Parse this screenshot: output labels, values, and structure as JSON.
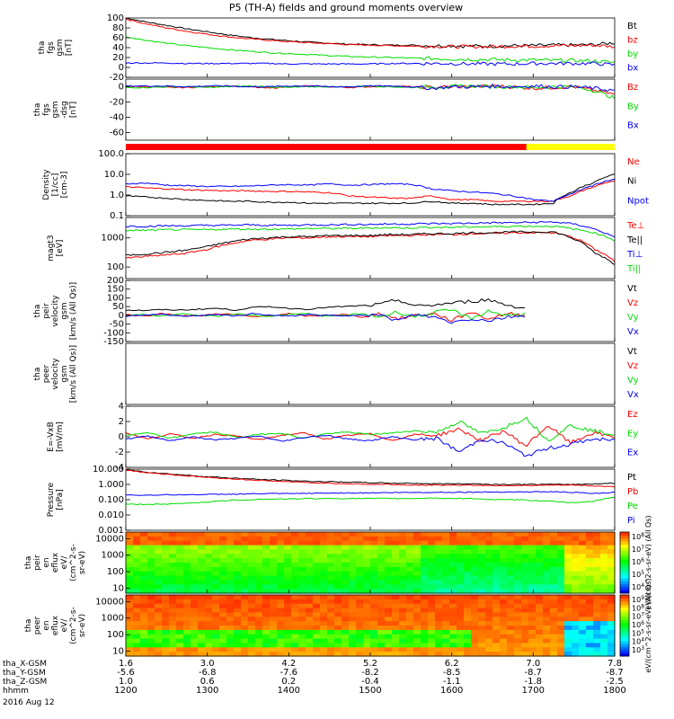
{
  "title": "P5 (TH-A) fields and ground moments overview",
  "colors": {
    "black": "#000000",
    "red": "#ff0000",
    "green": "#00dd00",
    "blue": "#0000ff",
    "yellow": "#ffff00"
  },
  "chart_data": [
    {
      "type": "line",
      "panel": "fgs-gsm",
      "ylabel": [
        "tha",
        "fgs",
        "gsm",
        "[nT]"
      ],
      "ylim": [
        -20,
        100
      ],
      "ytick_labels": [
        "100",
        "80",
        "60",
        "40",
        "20",
        "0",
        "-20"
      ],
      "series": [
        {
          "name": "Bt",
          "color": "black",
          "values": [
            100,
            92,
            85,
            78,
            72,
            66,
            61,
            57,
            54,
            51,
            49,
            47,
            46,
            45,
            45,
            44,
            44,
            43,
            43,
            44,
            44,
            45,
            45,
            46,
            50
          ]
        },
        {
          "name": "bz",
          "color": "red",
          "values": [
            98,
            88,
            80,
            73,
            67,
            62,
            58,
            55,
            52,
            50,
            48,
            46,
            45,
            44,
            43,
            43,
            42,
            42,
            42,
            43,
            43,
            44,
            44,
            45,
            42
          ]
        },
        {
          "name": "by",
          "color": "green",
          "values": [
            62,
            55,
            49,
            44,
            40,
            36,
            33,
            30,
            28,
            26,
            24,
            22,
            21,
            20,
            19,
            18,
            17,
            16,
            16,
            15,
            15,
            14,
            14,
            13,
            10
          ]
        },
        {
          "name": "bx",
          "color": "blue",
          "values": [
            9,
            9,
            9,
            8,
            8,
            8,
            8,
            8,
            7,
            7,
            7,
            7,
            7,
            8,
            8,
            8,
            8,
            7,
            7,
            7,
            8,
            8,
            8,
            8,
            5
          ]
        }
      ]
    },
    {
      "type": "line",
      "panel": "fgs-gsm-dsg",
      "ylabel": [
        "tha",
        "fgs",
        "gsm",
        "-dsg",
        "[nT]"
      ],
      "ylim": [
        -70,
        10
      ],
      "ytick_labels": [
        "0",
        "-20",
        "-40",
        "-60"
      ],
      "series": [
        {
          "name": "Bz",
          "color": "red",
          "values": [
            0,
            0,
            -1,
            -1,
            0,
            1,
            0,
            -2,
            0,
            1,
            0,
            -1,
            0,
            1,
            0,
            -1,
            0,
            0,
            1,
            0,
            -2,
            -1,
            0,
            -5,
            -10
          ]
        },
        {
          "name": "By",
          "color": "green",
          "values": [
            -1,
            -1,
            0,
            0,
            -1,
            0,
            1,
            0,
            -1,
            0,
            0,
            0,
            1,
            0,
            -1,
            0,
            0,
            1,
            0,
            0,
            -1,
            0,
            0,
            -5,
            -15
          ]
        },
        {
          "name": "Bx",
          "color": "blue",
          "values": [
            1,
            1,
            1,
            0,
            1,
            1,
            0,
            0,
            1,
            1,
            0,
            0,
            1,
            1,
            0,
            -2,
            0,
            0,
            1,
            0,
            1,
            0,
            0,
            -2,
            -5
          ]
        }
      ]
    },
    {
      "type": "line",
      "panel": "density",
      "ylabel": [
        "Density",
        "[1/cc]",
        "[cm-3]"
      ],
      "yscale": "log",
      "ylim": [
        0.1,
        100
      ],
      "ytick_labels": [
        "100.0",
        "10.0",
        "1.0",
        "0.1"
      ],
      "series": [
        {
          "name": "Ne",
          "color": "red",
          "values": [
            2.5,
            2.2,
            2.0,
            1.8,
            1.7,
            1.6,
            1.6,
            1.5,
            1.5,
            1.4,
            1.3,
            0.9,
            0.8,
            0.7,
            0.7,
            0.9,
            0.6,
            0.6,
            0.5,
            0.5,
            0.5,
            0.5,
            1.0,
            2.5,
            5.0
          ]
        },
        {
          "name": "Ni",
          "color": "black",
          "values": [
            0.9,
            0.8,
            0.7,
            0.6,
            0.55,
            0.5,
            0.5,
            0.45,
            0.45,
            0.4,
            0.4,
            0.4,
            0.4,
            0.4,
            0.4,
            0.5,
            0.4,
            0.4,
            0.35,
            0.35,
            0.35,
            0.4,
            1.5,
            4.0,
            10.0
          ]
        },
        {
          "name": "Npot",
          "color": "blue",
          "values": [
            3.5,
            3.8,
            3.0,
            2.8,
            2.6,
            2.6,
            2.7,
            3.0,
            3.2,
            3.0,
            3.5,
            3.0,
            3.2,
            3.5,
            3.3,
            2.0,
            1.6,
            1.4,
            1.2,
            0.9,
            0.6,
            0.5,
            1.2,
            3.0,
            6.0
          ]
        }
      ]
    },
    {
      "type": "line",
      "panel": "temperature",
      "ylabel": [
        "magt3",
        "[eV]"
      ],
      "yscale": "log",
      "ylim": [
        40,
        5000
      ],
      "ytick_labels": [
        "1000",
        "100"
      ],
      "series": [
        {
          "name": "Te⊥",
          "color": "red",
          "values": [
            200,
            230,
            260,
            300,
            400,
            600,
            800,
            900,
            1000,
            1000,
            1100,
            1100,
            1100,
            1200,
            1200,
            1300,
            1300,
            1400,
            1400,
            1500,
            1500,
            1500,
            1000,
            400,
            150
          ]
        },
        {
          "name": "Te||",
          "color": "black",
          "values": [
            250,
            280,
            320,
            380,
            500,
            700,
            900,
            1000,
            1100,
            1100,
            1200,
            1200,
            1200,
            1300,
            1300,
            1400,
            1400,
            1500,
            1500,
            1600,
            1600,
            1600,
            900,
            300,
            120
          ]
        },
        {
          "name": "Ti⊥",
          "color": "blue",
          "values": [
            2500,
            2500,
            2600,
            2600,
            2700,
            2700,
            2800,
            2700,
            2700,
            2800,
            2800,
            2900,
            2900,
            3000,
            3000,
            3100,
            3100,
            3200,
            3300,
            3300,
            3400,
            3500,
            3000,
            2000,
            1000
          ]
        },
        {
          "name": "Ti||",
          "color": "green",
          "values": [
            1800,
            1800,
            1900,
            1900,
            1900,
            2000,
            2000,
            2000,
            2000,
            2100,
            2100,
            2100,
            2200,
            2200,
            2200,
            2300,
            2300,
            2400,
            2400,
            2500,
            2500,
            2500,
            2000,
            1500,
            800
          ]
        }
      ]
    },
    {
      "type": "line",
      "panel": "peir-velocity",
      "ylabel": [
        "tha",
        "peir",
        "velocity",
        "gsm",
        "[km/s (All Qs)]"
      ],
      "ylim": [
        -150,
        200
      ],
      "ytick_labels": [
        "200",
        "150",
        "100",
        "50",
        "0",
        "-50",
        "-100",
        "-150"
      ],
      "series": [
        {
          "name": "Vt",
          "color": "black",
          "values": [
            30,
            28,
            32,
            30,
            35,
            40,
            30,
            45,
            50,
            40,
            35,
            45,
            50,
            55,
            60,
            90,
            50,
            60,
            70,
            80,
            90,
            60,
            40
          ]
        },
        {
          "name": "Vz",
          "color": "red",
          "values": [
            5,
            -5,
            10,
            0,
            -5,
            10,
            5,
            -10,
            0,
            10,
            -5,
            0,
            5,
            -10,
            10,
            -20,
            0,
            10,
            -30,
            20,
            -20,
            10,
            0
          ]
        },
        {
          "name": "Vy",
          "color": "green",
          "values": [
            0,
            5,
            -5,
            10,
            0,
            -5,
            10,
            0,
            -5,
            5,
            10,
            -5,
            0,
            10,
            -10,
            20,
            -10,
            15,
            30,
            -20,
            25,
            0,
            10
          ]
        },
        {
          "name": "Vx",
          "color": "blue",
          "values": [
            -5,
            0,
            5,
            -5,
            0,
            5,
            -5,
            10,
            0,
            -5,
            5,
            0,
            -5,
            5,
            0,
            -30,
            5,
            -10,
            -40,
            -20,
            -30,
            -10,
            0
          ]
        }
      ]
    },
    {
      "type": "line",
      "panel": "peer-velocity",
      "ylabel": [
        "tha",
        "peer",
        "velocity",
        "gsm",
        "[km/s (All Qs)]"
      ],
      "series": [
        {
          "name": "Vt",
          "color": "black",
          "values": []
        },
        {
          "name": "Vz",
          "color": "red",
          "values": []
        },
        {
          "name": "Vy",
          "color": "green",
          "values": []
        },
        {
          "name": "Vx",
          "color": "blue",
          "values": []
        }
      ]
    },
    {
      "type": "line",
      "panel": "efield",
      "ylabel": [
        "E=-VxB",
        "[mV/m]"
      ],
      "ylim": [
        -4,
        4
      ],
      "ytick_labels": [
        "4",
        "2",
        "0",
        "-2",
        "-4"
      ],
      "series": [
        {
          "name": "Ez",
          "color": "red",
          "values": [
            0.5,
            -0.3,
            0.4,
            -0.2,
            0.3,
            0.1,
            -0.4,
            0.2,
            0.5,
            -0.3,
            0.2,
            0.4,
            -0.5,
            0.3,
            0.2,
            1.0,
            -0.5,
            0.8,
            -1.2,
            1.5,
            -0.8,
            0.5,
            0.0
          ]
        },
        {
          "name": "Ey",
          "color": "green",
          "values": [
            0.2,
            0.5,
            -0.2,
            0.4,
            0.6,
            -0.1,
            0.3,
            0.5,
            -0.2,
            0.4,
            0.6,
            0.3,
            0.5,
            0.8,
            0.6,
            2.0,
            0.4,
            1.2,
            2.5,
            -0.5,
            1.5,
            0.8,
            0.3
          ]
        },
        {
          "name": "Ex",
          "color": "blue",
          "values": [
            -0.3,
            0.1,
            -0.5,
            0.0,
            -0.4,
            -0.2,
            0.1,
            -0.6,
            -0.1,
            0.2,
            -0.3,
            -0.5,
            0.0,
            -0.4,
            -0.2,
            -2.0,
            -0.3,
            -0.8,
            -2.5,
            -1.5,
            -1.0,
            -0.3,
            -0.5
          ]
        }
      ]
    },
    {
      "type": "line",
      "panel": "pressure",
      "ylabel": [
        "Pressure",
        "[nPa]"
      ],
      "yscale": "log",
      "ylim": [
        0.001,
        10
      ],
      "ytick_labels": [
        "10.000",
        "1.000",
        "0.100",
        "0.010",
        "0.001"
      ],
      "series": [
        {
          "name": "Pt",
          "color": "black",
          "values": [
            9.0,
            6.5,
            5.0,
            4.0,
            3.2,
            2.7,
            2.3,
            2.0,
            1.8,
            1.6,
            1.5,
            1.4,
            1.3,
            1.2,
            1.2,
            1.1,
            1.1,
            1.1,
            1.0,
            1.0,
            1.0,
            1.0,
            1.0,
            1.1,
            1.2
          ]
        },
        {
          "name": "Pb",
          "color": "red",
          "values": [
            8.5,
            6.0,
            4.6,
            3.6,
            2.9,
            2.4,
            2.0,
            1.7,
            1.5,
            1.3,
            1.2,
            1.1,
            1.0,
            1.0,
            0.9,
            0.9,
            0.9,
            0.9,
            0.85,
            0.85,
            0.85,
            0.9,
            0.9,
            0.8,
            0.7
          ]
        },
        {
          "name": "Pe",
          "color": "green",
          "values": [
            0.05,
            0.05,
            0.05,
            0.06,
            0.07,
            0.09,
            0.1,
            0.11,
            0.11,
            0.12,
            0.12,
            0.12,
            0.12,
            0.12,
            0.12,
            0.13,
            0.12,
            0.12,
            0.1,
            0.1,
            0.09,
            0.08,
            0.06,
            0.08,
            0.15
          ]
        },
        {
          "name": "Pi",
          "color": "blue",
          "values": [
            0.2,
            0.2,
            0.21,
            0.21,
            0.22,
            0.23,
            0.24,
            0.25,
            0.25,
            0.26,
            0.27,
            0.28,
            0.28,
            0.29,
            0.3,
            0.3,
            0.31,
            0.31,
            0.32,
            0.32,
            0.33,
            0.33,
            0.3,
            0.25,
            0.3
          ]
        }
      ]
    },
    {
      "type": "heatmap",
      "panel": "peir-eflux",
      "ylabel": [
        "tha",
        "peir",
        "en",
        "eflux",
        "eV/",
        "(cm^2-s-",
        "sr-eV)"
      ],
      "yscale": "log",
      "ylim": [
        5,
        25000
      ],
      "ytick_labels": [
        "10000",
        "1000",
        "100",
        "10"
      ],
      "colorbar_label": "eV/(cm^2-s-sr-eV) (All Qs)",
      "colorbar_ticks": [
        "10^8",
        "10^7",
        "10^6",
        "10^5",
        "10^4"
      ]
    },
    {
      "type": "heatmap",
      "panel": "peer-eflux",
      "ylabel": [
        "tha",
        "peer",
        "en",
        "eflux",
        "eV/",
        "(cm^2-s-",
        "sr-eV)"
      ],
      "yscale": "log",
      "ylim": [
        5,
        25000
      ],
      "ytick_labels": [
        "10000",
        "1000",
        "100",
        "10"
      ],
      "colorbar_label": "eV/(cm^2-s-sr-eV) (All Qs)",
      "colorbar_ticks": [
        "10^9",
        "10^8",
        "10^7",
        "10^6",
        "10^5",
        "10^4",
        "10^3"
      ]
    }
  ],
  "xaxis": {
    "ticks_hhmm": [
      "1200",
      "1300",
      "1400",
      "1500",
      "1600",
      "1700",
      "1800"
    ],
    "rows": [
      {
        "label": "tha_X-GSM",
        "values": [
          "1.6",
          "3.0",
          "4.2",
          "5.2",
          "6.2",
          "7.0",
          "7.8"
        ]
      },
      {
        "label": "tha_Y-GSM",
        "values": [
          "-5.6",
          "-6.8",
          "-7.6",
          "-8.2",
          "-8.5",
          "-8.7",
          "-8.7"
        ]
      },
      {
        "label": "tha_Z-GSM",
        "values": [
          "1.0",
          "0.6",
          "0.2",
          "-0.4",
          "-1.1",
          "-1.8",
          "-2.5"
        ]
      },
      {
        "label": "hhmm",
        "values": [
          "1200",
          "1300",
          "1400",
          "1500",
          "1600",
          "1700",
          "1800"
        ]
      }
    ],
    "date": "2016 Aug 12"
  },
  "mode_bar": {
    "segments": [
      {
        "from": "1200",
        "to": "1655",
        "color": "red"
      },
      {
        "from": "1655",
        "to": "1800",
        "color": "yellow"
      }
    ]
  }
}
